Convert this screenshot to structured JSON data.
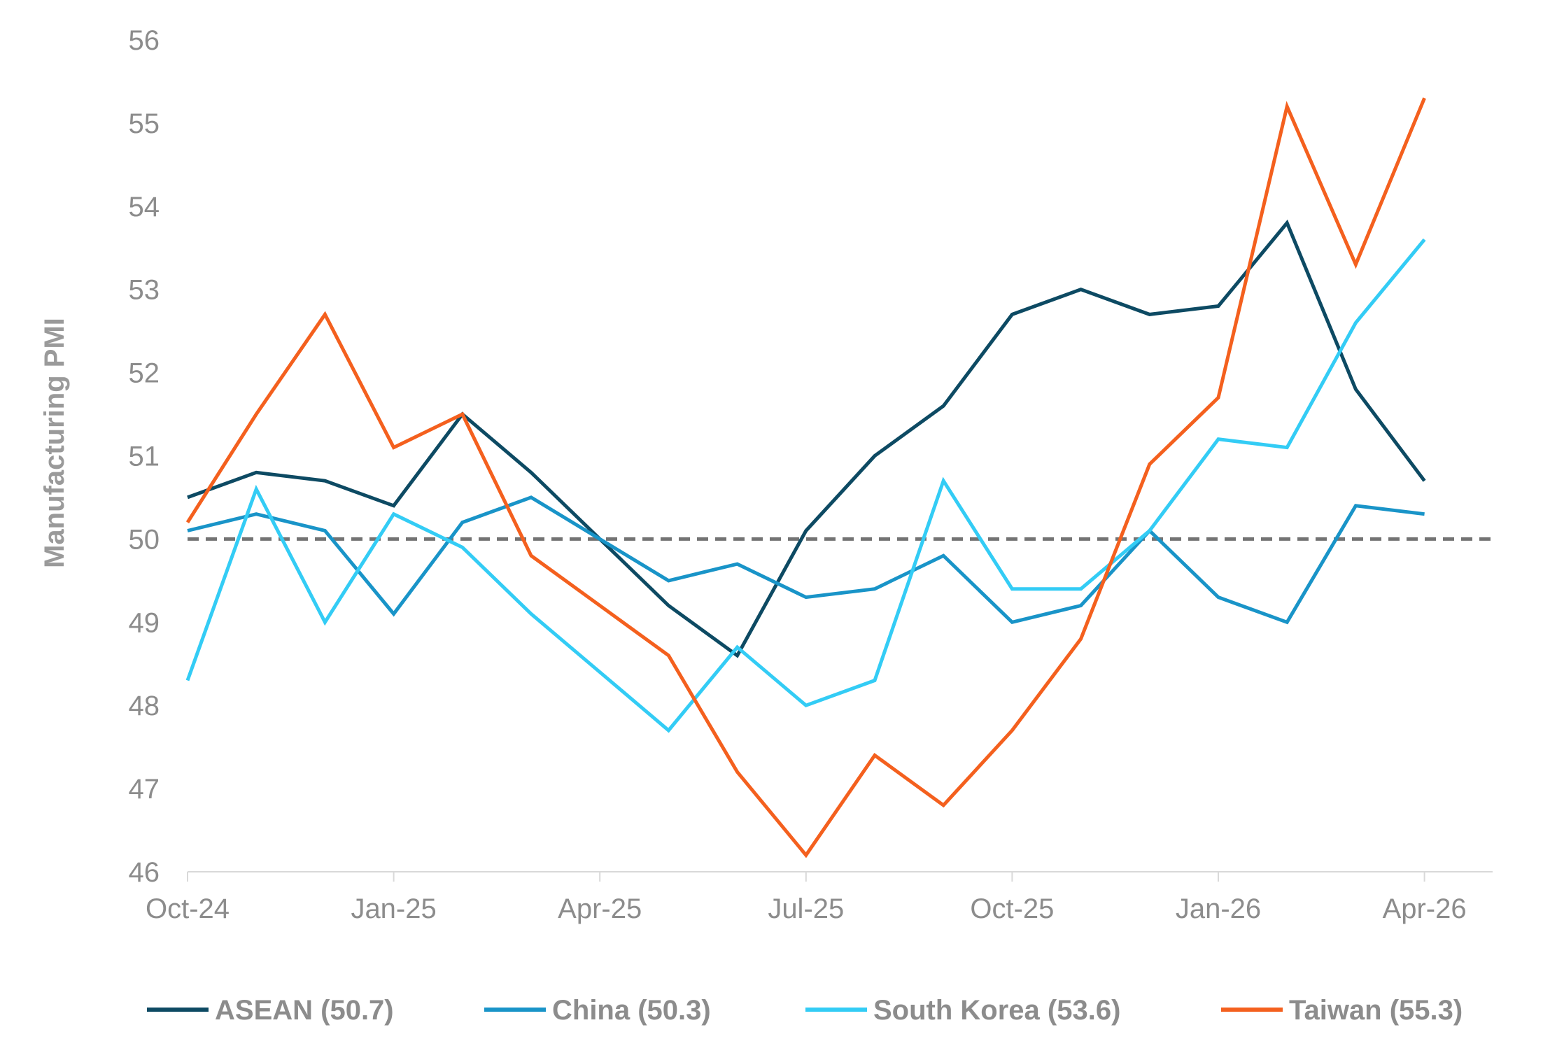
{
  "chart_data": {
    "type": "line",
    "ylabel": "Manufacturing PMI",
    "ylim": [
      46,
      56
    ],
    "yticks": [
      "46",
      "47",
      "48",
      "49",
      "50",
      "51",
      "52",
      "53",
      "54",
      "55",
      "56"
    ],
    "x": [
      "2024-10",
      "2024-11",
      "2024-12",
      "2025-01",
      "2025-02",
      "2025-03",
      "2025-04",
      "2025-05",
      "2025-06",
      "2025-07",
      "2025-08",
      "2025-09",
      "2025-10",
      "2025-11",
      "2025-12",
      "2026-01",
      "2026-02",
      "2026-03",
      "2026-04"
    ],
    "xticks": [
      {
        "x": "2024-10",
        "label": "Oct-24"
      },
      {
        "x": "2025-01",
        "label": "Jan-25"
      },
      {
        "x": "2025-04",
        "label": "Apr-25"
      },
      {
        "x": "2025-07",
        "label": "Jul-25"
      },
      {
        "x": "2025-10",
        "label": "Oct-25"
      },
      {
        "x": "2026-01",
        "label": "Jan-26"
      },
      {
        "x": "2026-04",
        "label": "Apr-26"
      }
    ],
    "reference_line": {
      "y": 50,
      "style": "dashed",
      "color": "#737373"
    },
    "grid": false,
    "legend_position": "bottom",
    "series": [
      {
        "name": "ASEAN (50.7)",
        "color": "#0d4a63",
        "values": [
          50.5,
          50.8,
          50.7,
          50.4,
          51.5,
          50.8,
          50.0,
          49.2,
          48.6,
          50.1,
          51.0,
          51.6,
          52.7,
          53.0,
          52.7,
          52.8,
          53.8,
          51.8,
          50.7
        ]
      },
      {
        "name": "China (50.3)",
        "color": "#1994c8",
        "values": [
          50.1,
          50.3,
          50.1,
          49.1,
          50.2,
          50.5,
          50.0,
          49.5,
          49.7,
          49.3,
          49.4,
          49.8,
          49.0,
          49.2,
          50.1,
          49.3,
          49.0,
          50.4,
          50.3
        ]
      },
      {
        "name": "South Korea (53.6)",
        "color": "#33ccf5",
        "values": [
          48.3,
          50.6,
          49.0,
          50.3,
          49.9,
          49.1,
          48.4,
          47.7,
          48.7,
          48.0,
          48.3,
          50.7,
          49.4,
          49.4,
          50.1,
          51.2,
          51.1,
          52.6,
          53.6
        ]
      },
      {
        "name": "Taiwan (55.3)",
        "color": "#f4601e",
        "values": [
          50.2,
          51.5,
          52.7,
          51.1,
          51.5,
          49.8,
          49.2,
          48.6,
          47.2,
          46.2,
          47.4,
          46.8,
          47.7,
          48.8,
          50.9,
          51.7,
          55.2,
          53.3,
          55.3
        ]
      }
    ]
  }
}
